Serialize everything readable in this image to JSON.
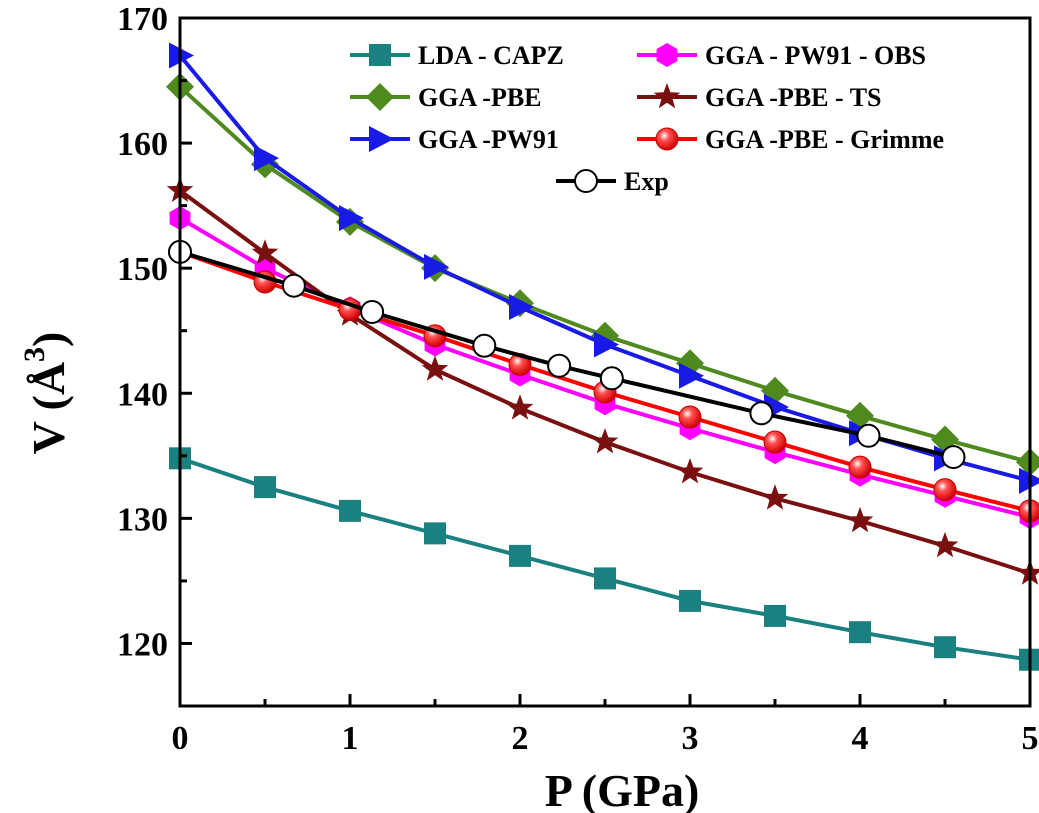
{
  "chart_data": {
    "type": "line",
    "title": "",
    "xlabel": "P (GPa)",
    "ylabel_main": "V (Å",
    "ylabel_sup": "3",
    "ylabel_close": ")",
    "xlim": [
      0,
      5
    ],
    "ylim": [
      115,
      170
    ],
    "xticks": [
      0,
      1,
      2,
      3,
      4,
      5
    ],
    "xtick_labels": [
      "0",
      "1",
      "2",
      "3",
      "4",
      "5"
    ],
    "yticks": [
      120,
      130,
      140,
      150,
      160,
      170
    ],
    "ytick_labels": [
      "120",
      "130",
      "140",
      "150",
      "160",
      "170"
    ],
    "grid": false,
    "legend_position": "top-right",
    "series": [
      {
        "name": "LDA - CAPZ",
        "color": "#1b8080",
        "marker": "square",
        "x": [
          0,
          0.5,
          1,
          1.5,
          2,
          2.5,
          3,
          3.5,
          4,
          4.5,
          5
        ],
        "y": [
          134.8,
          132.5,
          130.6,
          128.8,
          127.0,
          125.2,
          123.4,
          122.2,
          120.9,
          119.7,
          118.7
        ]
      },
      {
        "name": "GGA -PBE",
        "color": "#4f8a1e",
        "marker": "diamond",
        "x": [
          0,
          0.5,
          1,
          1.5,
          2,
          2.5,
          3,
          3.5,
          4,
          4.5,
          5
        ],
        "y": [
          164.5,
          158.3,
          153.7,
          150.0,
          147.2,
          144.6,
          142.4,
          140.2,
          138.2,
          136.3,
          134.5
        ]
      },
      {
        "name": "GGA -PW91",
        "color": "#1a1ae6",
        "marker": "triangle-right",
        "x": [
          0,
          0.5,
          1,
          1.5,
          2,
          2.5,
          3,
          3.5,
          4,
          4.5,
          5
        ],
        "y": [
          167.0,
          158.8,
          154.0,
          150.1,
          146.9,
          143.9,
          141.4,
          138.9,
          136.8,
          134.8,
          133.0
        ]
      },
      {
        "name": "GGA - PW91 - OBS",
        "color": "#ff00ff",
        "marker": "hexagon",
        "x": [
          0,
          0.5,
          1,
          1.5,
          2,
          2.5,
          3,
          3.5,
          4,
          4.5,
          5
        ],
        "y": [
          154.0,
          150.0,
          146.8,
          143.9,
          141.5,
          139.2,
          137.2,
          135.3,
          133.5,
          131.8,
          130.1
        ]
      },
      {
        "name": "GGA -PBE - TS",
        "color": "#7a0f0f",
        "marker": "star",
        "x": [
          0,
          0.5,
          1,
          1.5,
          2,
          2.5,
          3,
          3.5,
          4,
          4.5,
          5
        ],
        "y": [
          156.2,
          151.2,
          146.3,
          141.9,
          138.8,
          136.1,
          133.7,
          131.6,
          129.8,
          127.8,
          125.6
        ]
      },
      {
        "name": "GGA -PBE - Grimme",
        "color": "#ff0000",
        "marker": "ball",
        "x": [
          0,
          0.5,
          1,
          1.5,
          2,
          2.5,
          3,
          3.5,
          4,
          4.5,
          5
        ],
        "y": [
          151.3,
          148.9,
          146.7,
          144.6,
          142.3,
          140.1,
          138.1,
          136.1,
          134.1,
          132.3,
          130.6
        ]
      },
      {
        "name": "Exp",
        "color": "#000000",
        "marker": "circle-open",
        "x": [
          0,
          0.67,
          1.13,
          1.79,
          2.23,
          2.54,
          3.42,
          4.05,
          4.55
        ],
        "y": [
          151.3,
          148.6,
          146.5,
          143.8,
          142.2,
          141.2,
          138.4,
          136.6,
          134.9
        ]
      }
    ]
  }
}
